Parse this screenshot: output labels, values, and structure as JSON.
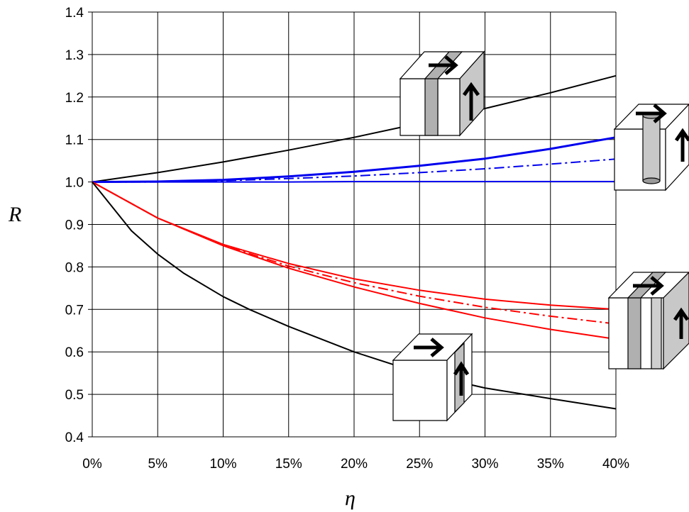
{
  "chart_data": {
    "type": "line",
    "title": "",
    "xlabel": "η",
    "ylabel": "R",
    "x_tick_labels": [
      "0%",
      "5%",
      "10%",
      "15%",
      "20%",
      "25%",
      "30%",
      "35%",
      "40%"
    ],
    "y_tick_labels": [
      "0.4",
      "0.5",
      "0.6",
      "0.7",
      "0.8",
      "0.9",
      "1.0",
      "1.1",
      "1.2",
      "1.3",
      "1.4"
    ],
    "xlim": [
      0,
      40
    ],
    "ylim": [
      0.4,
      1.4
    ],
    "grid": true,
    "legend": "none (inset sketches at right)",
    "series": [
      {
        "color": "#000000",
        "style": "solid",
        "width": 2,
        "x": [
          0,
          5,
          10,
          15,
          20,
          25,
          30,
          35,
          40
        ],
        "y": [
          1.0,
          1.022,
          1.047,
          1.075,
          1.105,
          1.138,
          1.173,
          1.21,
          1.25
        ]
      },
      {
        "color": "#0000ee",
        "style": "solid",
        "width": 3,
        "x": [
          0,
          5,
          10,
          15,
          20,
          25,
          30,
          35,
          40
        ],
        "y": [
          1.0,
          1.001,
          1.005,
          1.013,
          1.024,
          1.038,
          1.055,
          1.078,
          1.105
        ]
      },
      {
        "color": "#0000ee",
        "style": "dashdot",
        "width": 2,
        "x": [
          0,
          5,
          10,
          15,
          20,
          25,
          30,
          35,
          40
        ],
        "y": [
          1.0,
          1.0,
          1.003,
          1.008,
          1.014,
          1.022,
          1.031,
          1.042,
          1.054
        ]
      },
      {
        "color": "#0000ee",
        "style": "solid",
        "width": 2,
        "x": [
          0,
          5,
          10,
          15,
          20,
          25,
          30,
          35,
          40
        ],
        "y": [
          1.0,
          1.0,
          1.0,
          1.0,
          1.001,
          1.001,
          1.001,
          1.001,
          1.001
        ]
      },
      {
        "color": "#ff0000",
        "style": "solid",
        "width": 2,
        "x": [
          0,
          5,
          10,
          15,
          20,
          25,
          30,
          35,
          40
        ],
        "y": [
          1.0,
          0.915,
          0.853,
          0.808,
          0.772,
          0.745,
          0.724,
          0.71,
          0.7
        ]
      },
      {
        "color": "#ff0000",
        "style": "dashdot",
        "width": 2,
        "x": [
          0,
          5,
          10,
          15,
          20,
          25,
          30,
          35,
          40
        ],
        "y": [
          1.0,
          0.915,
          0.851,
          0.802,
          0.763,
          0.731,
          0.705,
          0.684,
          0.666
        ]
      },
      {
        "color": "#ff0000",
        "style": "solid",
        "width": 2,
        "x": [
          0,
          5,
          10,
          15,
          20,
          25,
          30,
          35,
          40
        ],
        "y": [
          1.0,
          0.915,
          0.85,
          0.797,
          0.753,
          0.714,
          0.68,
          0.653,
          0.63
        ]
      },
      {
        "color": "#000000",
        "style": "solid",
        "width": 2,
        "x": [
          0,
          3,
          5,
          7,
          10,
          12,
          15,
          20,
          25,
          30,
          35,
          40
        ],
        "y": [
          1.0,
          0.885,
          0.83,
          0.785,
          0.73,
          0.7,
          0.66,
          0.6,
          0.55,
          0.515,
          0.49,
          0.466
        ]
      }
    ]
  },
  "insets": [
    {
      "name": "inset-slab-top",
      "type": "slab"
    },
    {
      "name": "inset-cylinder",
      "type": "cylinder"
    },
    {
      "name": "inset-double-slab",
      "type": "double-slab"
    },
    {
      "name": "inset-slab-bottom",
      "type": "side-slab"
    }
  ]
}
